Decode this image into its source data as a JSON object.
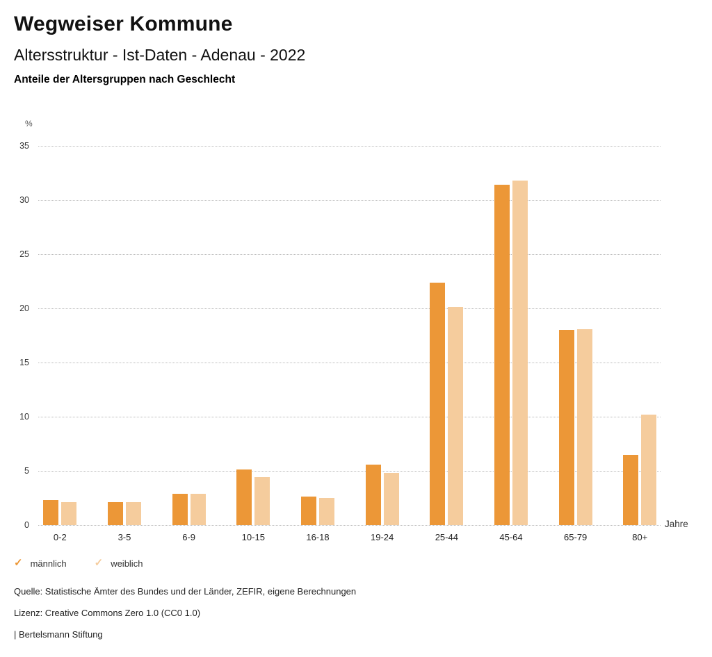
{
  "header": {
    "title": "Wegweiser Kommune",
    "subtitle": "Altersstruktur - Ist-Daten - Adenau - 2022",
    "heading": "Anteile der Altersgruppen nach Geschlecht"
  },
  "chart_data": {
    "type": "bar",
    "title": "Anteile der Altersgruppen nach Geschlecht",
    "unit_label": "%",
    "x_axis_label": "Jahre",
    "categories": [
      "0-2",
      "3-5",
      "6-9",
      "10-15",
      "16-18",
      "19-24",
      "25-44",
      "45-64",
      "65-79",
      "80+"
    ],
    "series": [
      {
        "name": "männlich",
        "key": "maennlich",
        "color": "#EC9737",
        "values": [
          2.3,
          2.1,
          2.9,
          5.1,
          2.6,
          5.6,
          22.4,
          31.4,
          18.0,
          6.5
        ]
      },
      {
        "name": "weiblich",
        "key": "weiblich",
        "color": "#F5CC9D",
        "values": [
          2.1,
          2.1,
          2.9,
          4.4,
          2.5,
          4.8,
          20.1,
          31.8,
          18.1,
          10.2
        ]
      }
    ],
    "ylim": [
      0,
      35
    ],
    "yticks": [
      0,
      5,
      10,
      15,
      20,
      25,
      30,
      35
    ],
    "grid": "horizontal-dotted",
    "legend_position": "bottom-left"
  },
  "legend": {
    "check_icon": "✓"
  },
  "footer": {
    "source": "Quelle: Statistische Ämter des Bundes und der Länder, ZEFIR, eigene Berechnungen",
    "license": "Lizenz: Creative Commons Zero 1.0 (CC0 1.0)",
    "attribution": "| Bertelsmann Stiftung"
  }
}
